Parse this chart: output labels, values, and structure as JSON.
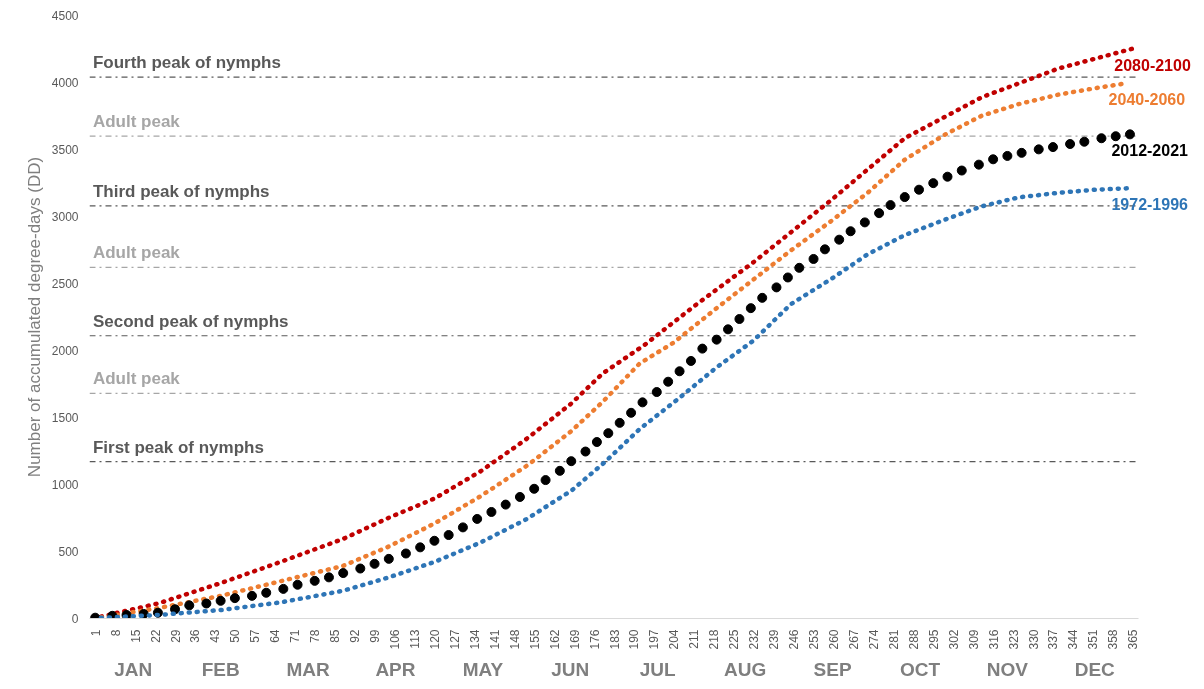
{
  "chart_data": {
    "type": "line",
    "ylabel": "Number of accumulated degree-days (DD)",
    "xlim": [
      -1,
      367
    ],
    "ylim": [
      0,
      4500
    ],
    "xticks": [
      1,
      8,
      15,
      22,
      29,
      36,
      43,
      50,
      57,
      64,
      71,
      78,
      85,
      92,
      99,
      106,
      113,
      120,
      127,
      134,
      141,
      148,
      155,
      162,
      169,
      176,
      183,
      190,
      197,
      204,
      211,
      218,
      225,
      232,
      239,
      246,
      253,
      260,
      267,
      274,
      281,
      288,
      295,
      302,
      309,
      316,
      323,
      330,
      337,
      344,
      351,
      358,
      365
    ],
    "yticks": [
      0,
      500,
      1000,
      1500,
      2000,
      2500,
      3000,
      3500,
      4000,
      4500
    ],
    "grid": false,
    "legend": false,
    "line_style": "dotted",
    "series": [
      {
        "name": "2080-2100",
        "color": "#c00000",
        "x": [
          3,
          23,
          45,
          66,
          88,
          104,
          120,
          136,
          141,
          152,
          168,
          179,
          194,
          212,
          232,
          259,
          285,
          312,
          339,
          365
        ],
        "values": [
          14,
          112,
          264,
          422,
          594,
          752,
          895,
          1096,
          1170,
          1335,
          1604,
          1828,
          2046,
          2345,
          2660,
          3119,
          3584,
          3890,
          4105,
          4253
        ]
      },
      {
        "name": "2040-2060",
        "color": "#ed7d31",
        "x": [
          3,
          23,
          45,
          66,
          88,
          104,
          120,
          136,
          152,
          154,
          168,
          179,
          192,
          204,
          219,
          232,
          245,
          259,
          272,
          285,
          299,
          312,
          325,
          339,
          352,
          363
        ],
        "values": [
          8,
          77,
          169,
          278,
          393,
          537,
          709,
          910,
          1134,
          1165,
          1398,
          1616,
          1903,
          2060,
          2316,
          2531,
          2746,
          2963,
          3177,
          3424,
          3610,
          3752,
          3839,
          3910,
          3958,
          3995
        ]
      },
      {
        "name": "2012-2021",
        "color": "#000000",
        "type": "scatter",
        "x": [
          1,
          7,
          12,
          18,
          23,
          29,
          34,
          40,
          45,
          50,
          56,
          61,
          67,
          72,
          78,
          83,
          88,
          94,
          99,
          104,
          110,
          115,
          120,
          125,
          130,
          135,
          140,
          145,
          150,
          155,
          159,
          164,
          168,
          173,
          177,
          181,
          185,
          189,
          193,
          198,
          202,
          206,
          210,
          214,
          219,
          223,
          227,
          231,
          235,
          240,
          244,
          248,
          253,
          257,
          262,
          266,
          271,
          276,
          280,
          285,
          290,
          295,
          300,
          305,
          311,
          316,
          321,
          326,
          332,
          337,
          343,
          348,
          354,
          359,
          364
        ],
        "values": [
          6,
          20,
          26,
          34,
          43,
          69,
          98,
          112,
          132,
          152,
          169,
          192,
          221,
          252,
          281,
          307,
          339,
          373,
          408,
          445,
          485,
          531,
          580,
          623,
          680,
          743,
          795,
          850,
          907,
          968,
          1033,
          1102,
          1174,
          1246,
          1317,
          1383,
          1460,
          1535,
          1613,
          1690,
          1767,
          1845,
          1922,
          2014,
          2081,
          2158,
          2235,
          2316,
          2393,
          2471,
          2545,
          2617,
          2683,
          2755,
          2827,
          2890,
          2956,
          3025,
          3085,
          3145,
          3200,
          3249,
          3297,
          3343,
          3387,
          3427,
          3452,
          3475,
          3501,
          3518,
          3541,
          3558,
          3584,
          3599,
          3613
        ]
      },
      {
        "name": "1972-1996",
        "color": "#2e75b6",
        "x": [
          3,
          23,
          45,
          66,
          88,
          104,
          120,
          136,
          152,
          168,
          180,
          192,
          205,
          219,
          232,
          245,
          259,
          272,
          285,
          299,
          312,
          325,
          339,
          352,
          364
        ],
        "values": [
          5,
          26,
          63,
          120,
          207,
          307,
          422,
          565,
          738,
          953,
          1171,
          1414,
          1630,
          1874,
          2075,
          2345,
          2531,
          2718,
          2861,
          2976,
          3076,
          3143,
          3177,
          3200,
          3211
        ]
      }
    ],
    "ref_lines": [
      {
        "axis": "y",
        "value": 1170,
        "label": "First peak of nymphs",
        "color": "#595959",
        "line_style": "dashdot"
      },
      {
        "axis": "y",
        "value": 1680,
        "label": "Adult peak",
        "color": "#a6a6a6",
        "line_style": "dashdot"
      },
      {
        "axis": "y",
        "value": 2110,
        "label": "Second peak of nymphs",
        "color": "#595959",
        "line_style": "dashdot"
      },
      {
        "axis": "y",
        "value": 2620,
        "label": "Adult peak",
        "color": "#a6a6a6",
        "line_style": "dashdot"
      },
      {
        "axis": "y",
        "value": 3080,
        "label": "Third peak of nymphs",
        "color": "#595959",
        "line_style": "dashdot"
      },
      {
        "axis": "y",
        "value": 3600,
        "label": "Adult peak",
        "color": "#a6a6a6",
        "line_style": "dashdot"
      },
      {
        "axis": "y",
        "value": 4040,
        "label": "Fourth peak of nymphs",
        "color": "#595959",
        "line_style": "dashdot"
      }
    ],
    "annotations": [
      "JAN",
      "FEB",
      "MAR",
      "APR",
      "MAY",
      "JUN",
      "JUL",
      "AUG",
      "SEP",
      "OCT",
      "NOV",
      "DEC"
    ]
  }
}
